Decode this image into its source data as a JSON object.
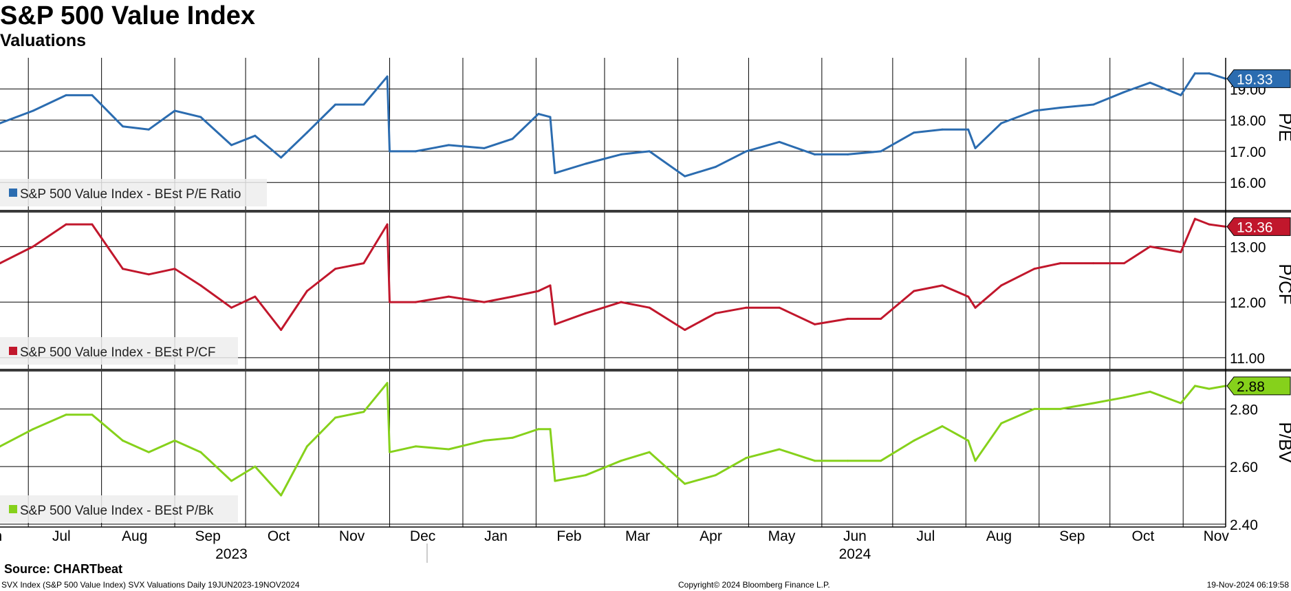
{
  "title": "S&P 500 Value Index",
  "subtitle": "Valuations",
  "footer": {
    "source": "Source: CHARTbeat",
    "left": "SVX Index (S&P 500 Value Index) SVX Valuations  Daily 19JUN2023-19NOV2024",
    "center": "Copyright© 2024 Bloomberg Finance L.P.",
    "right": "19-Nov-2024 06:19:58"
  },
  "colors": {
    "pe": "#2b6cb0",
    "pcf": "#c1172c",
    "pbv": "#86d11b",
    "grid": "#000000",
    "legend_bg": "#ededed"
  },
  "chart_data": {
    "type": "line",
    "x_start": "2023-06-19",
    "x_end": "2024-11-19",
    "month_labels": [
      {
        "date": "2023-06-15",
        "label": "Jun"
      },
      {
        "date": "2023-07-15",
        "label": "Jul"
      },
      {
        "date": "2023-08-15",
        "label": "Aug"
      },
      {
        "date": "2023-09-15",
        "label": "Sep"
      },
      {
        "date": "2023-10-15",
        "label": "Oct"
      },
      {
        "date": "2023-11-15",
        "label": "Nov"
      },
      {
        "date": "2023-12-15",
        "label": "Dec"
      },
      {
        "date": "2024-01-15",
        "label": "Jan"
      },
      {
        "date": "2024-02-15",
        "label": "Feb"
      },
      {
        "date": "2024-03-15",
        "label": "Mar"
      },
      {
        "date": "2024-04-15",
        "label": "Apr"
      },
      {
        "date": "2024-05-15",
        "label": "May"
      },
      {
        "date": "2024-06-15",
        "label": "Jun"
      },
      {
        "date": "2024-07-15",
        "label": "Jul"
      },
      {
        "date": "2024-08-15",
        "label": "Aug"
      },
      {
        "date": "2024-09-15",
        "label": "Sep"
      },
      {
        "date": "2024-10-15",
        "label": "Oct"
      },
      {
        "date": "2024-11-15",
        "label": "Nov"
      }
    ],
    "month_gridlines": [
      "2023-07-01",
      "2023-08-01",
      "2023-09-01",
      "2023-10-01",
      "2023-11-01",
      "2023-12-01",
      "2024-01-01",
      "2024-02-01",
      "2024-03-01",
      "2024-04-01",
      "2024-05-01",
      "2024-06-01",
      "2024-07-01",
      "2024-08-01",
      "2024-09-01",
      "2024-10-01",
      "2024-11-01"
    ],
    "year_labels": [
      {
        "date": "2023-09-25",
        "label": "2023"
      },
      {
        "date": "2024-06-15",
        "label": "2024"
      }
    ],
    "year_separator": "2024-01-01",
    "panels": [
      {
        "key": "pe",
        "axis_label": "P/E",
        "legend": "S&P 500 Value Index - BEst P/E Ratio",
        "last_value": "19.33",
        "ylim": [
          15.1,
          20.0
        ],
        "ticks": [
          16.0,
          17.0,
          18.0,
          19.0
        ],
        "tick_labels": [
          "16.00",
          "17.00",
          "18.00",
          "19.00"
        ],
        "x": [
          "2023-06-19",
          "2023-07-03",
          "2023-07-17",
          "2023-07-28",
          "2023-08-10",
          "2023-08-21",
          "2023-09-01",
          "2023-09-12",
          "2023-09-25",
          "2023-10-05",
          "2023-10-16",
          "2023-10-27",
          "2023-11-08",
          "2023-11-20",
          "2023-11-30",
          "2023-12-01",
          "2023-12-12",
          "2023-12-26",
          "2024-01-10",
          "2024-01-22",
          "2024-02-02",
          "2024-02-07",
          "2024-02-09",
          "2024-02-22",
          "2024-03-08",
          "2024-03-20",
          "2024-04-04",
          "2024-04-17",
          "2024-04-30",
          "2024-05-14",
          "2024-05-29",
          "2024-06-12",
          "2024-06-26",
          "2024-07-10",
          "2024-07-22",
          "2024-08-02",
          "2024-08-05",
          "2024-08-16",
          "2024-08-30",
          "2024-09-10",
          "2024-09-24",
          "2024-10-07",
          "2024-10-18",
          "2024-10-31",
          "2024-11-06",
          "2024-11-12",
          "2024-11-19"
        ],
        "values": [
          17.9,
          18.3,
          18.8,
          18.8,
          17.8,
          17.7,
          18.3,
          18.1,
          17.2,
          17.5,
          16.8,
          17.6,
          18.5,
          18.5,
          19.4,
          17.0,
          17.0,
          17.2,
          17.1,
          17.4,
          18.2,
          18.1,
          16.3,
          16.6,
          16.9,
          17.0,
          16.2,
          16.5,
          17.0,
          17.3,
          16.9,
          16.9,
          17.0,
          17.6,
          17.7,
          17.7,
          17.1,
          17.9,
          18.3,
          18.4,
          18.5,
          18.9,
          19.2,
          18.8,
          19.5,
          19.5,
          19.33
        ]
      },
      {
        "key": "pcf",
        "axis_label": "P/CF",
        "legend": "S&P 500 Value Index - BEst P/CF",
        "last_value": "13.36",
        "ylim": [
          10.8,
          13.6
        ],
        "ticks": [
          11.0,
          12.0,
          13.0
        ],
        "tick_labels": [
          "11.00",
          "12.00",
          "13.00"
        ],
        "x": [
          "2023-06-19",
          "2023-07-03",
          "2023-07-17",
          "2023-07-28",
          "2023-08-10",
          "2023-08-21",
          "2023-09-01",
          "2023-09-12",
          "2023-09-25",
          "2023-10-05",
          "2023-10-16",
          "2023-10-27",
          "2023-11-08",
          "2023-11-20",
          "2023-11-30",
          "2023-12-01",
          "2023-12-12",
          "2023-12-26",
          "2024-01-10",
          "2024-01-22",
          "2024-02-02",
          "2024-02-07",
          "2024-02-09",
          "2024-02-22",
          "2024-03-08",
          "2024-03-20",
          "2024-04-04",
          "2024-04-17",
          "2024-04-30",
          "2024-05-14",
          "2024-05-29",
          "2024-06-12",
          "2024-06-26",
          "2024-07-10",
          "2024-07-22",
          "2024-08-02",
          "2024-08-05",
          "2024-08-16",
          "2024-08-30",
          "2024-09-10",
          "2024-09-24",
          "2024-10-07",
          "2024-10-18",
          "2024-10-31",
          "2024-11-06",
          "2024-11-12",
          "2024-11-19"
        ],
        "values": [
          12.7,
          13.0,
          13.4,
          13.4,
          12.6,
          12.5,
          12.6,
          12.3,
          11.9,
          12.1,
          11.5,
          12.2,
          12.6,
          12.7,
          13.4,
          12.0,
          12.0,
          12.1,
          12.0,
          12.1,
          12.2,
          12.3,
          11.6,
          11.8,
          12.0,
          11.9,
          11.5,
          11.8,
          11.9,
          11.9,
          11.6,
          11.7,
          11.7,
          12.2,
          12.3,
          12.1,
          11.9,
          12.3,
          12.6,
          12.7,
          12.7,
          12.7,
          13.0,
          12.9,
          13.5,
          13.4,
          13.36
        ]
      },
      {
        "key": "pbv",
        "axis_label": "P/BV",
        "legend": "S&P 500 Value Index - BEst P/Bk",
        "last_value": "2.88",
        "ylim": [
          2.39,
          2.93
        ],
        "ticks": [
          2.4,
          2.6,
          2.8
        ],
        "tick_labels": [
          "2.40",
          "2.60",
          "2.80"
        ],
        "x": [
          "2023-06-19",
          "2023-07-03",
          "2023-07-17",
          "2023-07-28",
          "2023-08-10",
          "2023-08-21",
          "2023-09-01",
          "2023-09-12",
          "2023-09-25",
          "2023-10-05",
          "2023-10-16",
          "2023-10-27",
          "2023-11-08",
          "2023-11-20",
          "2023-11-30",
          "2023-12-01",
          "2023-12-12",
          "2023-12-26",
          "2024-01-10",
          "2024-01-22",
          "2024-02-02",
          "2024-02-07",
          "2024-02-09",
          "2024-02-22",
          "2024-03-08",
          "2024-03-20",
          "2024-04-04",
          "2024-04-17",
          "2024-04-30",
          "2024-05-14",
          "2024-05-29",
          "2024-06-12",
          "2024-06-26",
          "2024-07-10",
          "2024-07-22",
          "2024-08-02",
          "2024-08-05",
          "2024-08-16",
          "2024-08-30",
          "2024-09-10",
          "2024-09-24",
          "2024-10-07",
          "2024-10-18",
          "2024-10-31",
          "2024-11-06",
          "2024-11-12",
          "2024-11-19"
        ],
        "values": [
          2.67,
          2.73,
          2.78,
          2.78,
          2.69,
          2.65,
          2.69,
          2.65,
          2.55,
          2.6,
          2.5,
          2.67,
          2.77,
          2.79,
          2.89,
          2.65,
          2.67,
          2.66,
          2.69,
          2.7,
          2.73,
          2.73,
          2.55,
          2.57,
          2.62,
          2.65,
          2.54,
          2.57,
          2.63,
          2.66,
          2.62,
          2.62,
          2.62,
          2.69,
          2.74,
          2.69,
          2.62,
          2.75,
          2.8,
          2.8,
          2.82,
          2.84,
          2.86,
          2.82,
          2.88,
          2.87,
          2.88
        ]
      }
    ]
  }
}
